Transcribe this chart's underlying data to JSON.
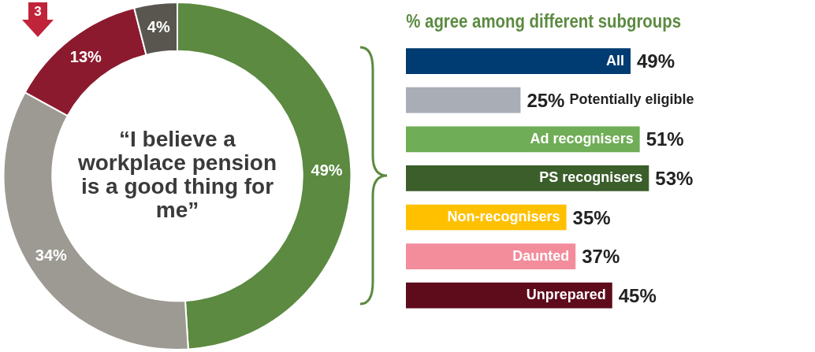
{
  "chart_data": [
    {
      "type": "donut",
      "title": "“I believe a workplace pension is a good thing for me”",
      "categories": [
        null,
        null,
        null,
        null
      ],
      "values": [
        49,
        34,
        13,
        4
      ],
      "colors": [
        "#5b8a40",
        "#9c9a92",
        "#8c1a2e",
        "#58564f"
      ],
      "value_labels": [
        "49%",
        "34%",
        "13%",
        "4%"
      ],
      "annotations": [
        "3"
      ]
    },
    {
      "type": "bar",
      "orientation": "horizontal",
      "title": "% agree among different subgroups",
      "categories": [
        "All",
        "Potentially eligible",
        "Ad recognisers",
        "PS recognisers",
        "Non-recognisers",
        "Daunted",
        "Unprepared"
      ],
      "values": [
        49,
        25,
        51,
        53,
        35,
        37,
        45
      ],
      "colors": [
        "#003b71",
        "#a8adb6",
        "#70ad57",
        "#3b5e2b",
        "#ffc000",
        "#f38d9c",
        "#5e0b1c"
      ],
      "value_labels": [
        "49%",
        "25%",
        "51%",
        "53%",
        "35%",
        "37%",
        "45%"
      ]
    }
  ]
}
